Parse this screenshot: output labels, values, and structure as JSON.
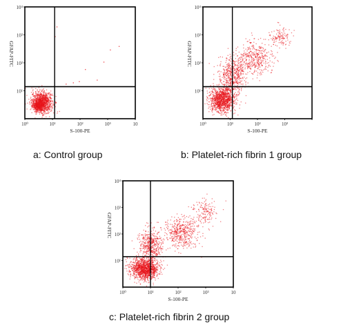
{
  "chart_data": [
    {
      "type": "scatter",
      "title": "",
      "caption": "a: Control group",
      "xlabel": "S-100-PE",
      "ylabel": "GFAP-FITC",
      "x_scale": "log",
      "y_scale": "log",
      "xlim": [
        1,
        10000
      ],
      "ylim": [
        1,
        10000
      ],
      "x_ticks": [
        "10⁰",
        "10¹",
        "10²",
        "10³",
        "10"
      ],
      "y_ticks": [
        "10¹",
        "10²",
        "10³",
        "10⁴"
      ],
      "gate": {
        "x": 12,
        "y": 14
      },
      "color": "#e8121a",
      "clusters": [
        {
          "cx": 4.0,
          "cy": 4.0,
          "sx": 2.2,
          "sy": 2.2,
          "n": 1100
        },
        {
          "cx": 3.0,
          "cy": 3.0,
          "sx": 1.5,
          "sy": 1.5,
          "n": 300
        }
      ],
      "sparse_points": [
        [
          30,
          18
        ],
        [
          55,
          20
        ],
        [
          90,
          22
        ],
        [
          400,
          25
        ],
        [
          150,
          60
        ],
        [
          700,
          110
        ],
        [
          1200,
          300
        ],
        [
          2500,
          400
        ],
        [
          12,
          900
        ],
        [
          14,
          2000
        ]
      ]
    },
    {
      "type": "scatter",
      "title": "",
      "caption": "b: Platelet-rich fibrin 1 group",
      "xlabel": "S-100-PE",
      "ylabel": "GFAP-FITC",
      "x_scale": "log",
      "y_scale": "log",
      "xlim": [
        1,
        10000
      ],
      "ylim": [
        1,
        10000
      ],
      "x_ticks": [
        "10⁰",
        "10¹",
        "10²",
        "10³",
        ""
      ],
      "y_ticks": [
        "10¹",
        "10²",
        "10³",
        "10⁴"
      ],
      "gate": {
        "x": 12,
        "y": 14
      },
      "color": "#e8121a",
      "clusters": [
        {
          "cx": 5.0,
          "cy": 5.0,
          "sx": 2.6,
          "sy": 2.6,
          "n": 1200
        },
        {
          "cx": 12.0,
          "cy": 40.0,
          "sx": 3.0,
          "sy": 4.0,
          "n": 500
        },
        {
          "cx": 80.0,
          "cy": 150.0,
          "sx": 3.5,
          "sy": 3.5,
          "n": 400
        },
        {
          "cx": 700.0,
          "cy": 900.0,
          "sx": 2.5,
          "sy": 2.2,
          "n": 120
        }
      ],
      "sparse_points": []
    },
    {
      "type": "scatter",
      "title": "",
      "caption": "c: Platelet-rich fibrin 2 group",
      "xlabel": "S-100-PE",
      "ylabel": "GFAP-FITC",
      "x_scale": "log",
      "y_scale": "log",
      "xlim": [
        1,
        10000
      ],
      "ylim": [
        1,
        10000
      ],
      "x_ticks": [
        "10⁰",
        "10¹",
        "10²",
        "10³",
        "10"
      ],
      "y_ticks": [
        "10¹",
        "10²",
        "10³",
        "10⁴"
      ],
      "gate": {
        "x": 10,
        "y": 14
      },
      "color": "#e8121a",
      "clusters": [
        {
          "cx": 6.0,
          "cy": 5.0,
          "sx": 2.8,
          "sy": 2.3,
          "n": 1300
        },
        {
          "cx": 10.0,
          "cy": 40.0,
          "sx": 2.5,
          "sy": 3.5,
          "n": 450
        },
        {
          "cx": 120.0,
          "cy": 120.0,
          "sx": 3.5,
          "sy": 3.5,
          "n": 450
        },
        {
          "cx": 900.0,
          "cy": 700.0,
          "sx": 2.5,
          "sy": 2.5,
          "n": 150
        }
      ],
      "sparse_points": []
    }
  ]
}
